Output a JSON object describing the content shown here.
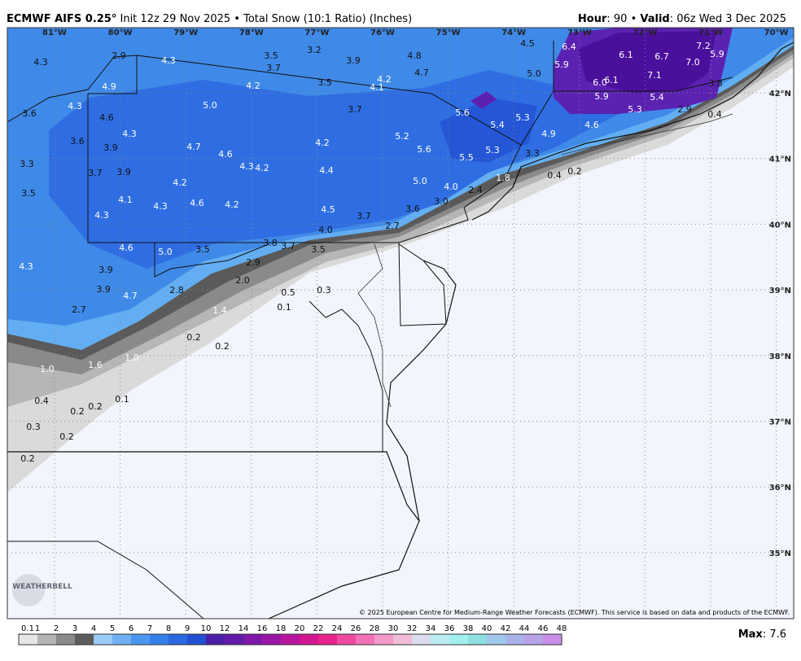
{
  "header": {
    "model": "ECMWF AIFS 0.25°",
    "init": " Init 12z 29 Nov 2025 • Total Snow (10:1 Ratio) (Inches)",
    "hour_label": "Hour",
    "hour": ": 90 • ",
    "valid_label": "Valid",
    "valid": ": 06z Wed 3 Dec 2025"
  },
  "map": {
    "lon_labels": [
      "81°W",
      "80°W",
      "79°W",
      "78°W",
      "77°W",
      "76°W",
      "75°W",
      "74°W",
      "73°W",
      "72°W",
      "71°W",
      "70°W"
    ],
    "lat_labels": [
      "42°N",
      "41°N",
      "40°N",
      "39°N",
      "38°N",
      "37°N",
      "36°N",
      "35°N"
    ],
    "values": [
      "4.3",
      "2.9",
      "4.3",
      "3.5",
      "3.2",
      "3.7",
      "3.9",
      "4.8",
      "4.7",
      "4.5",
      "6.4",
      "5.9",
      "6.1",
      "6.7",
      "7.2",
      "5.9",
      "7.0",
      "7.1",
      "3.8",
      "5.0",
      "4.2",
      "4.1",
      "3.5",
      "4.2",
      "4.9",
      "6.0",
      "6.1",
      "5.9",
      "5.3",
      "5.4",
      "2.9",
      "0.4",
      "4.3",
      "3.6",
      "4.6",
      "5.0",
      "3.7",
      "5.6",
      "5.4",
      "5.3",
      "4.6",
      "4.9",
      "4.3",
      "3.6",
      "3.9",
      "4.7",
      "4.6",
      "4.2",
      "5.2",
      "5.6",
      "5.5",
      "5.3",
      "3.3",
      "3.7",
      "3.9",
      "4.3",
      "4.2",
      "4.4",
      "4.2",
      "5.0",
      "4.0",
      "3.5",
      "4.1",
      "4.3",
      "4.6",
      "4.2",
      "3.0",
      "2.4",
      "4.5",
      "3.7",
      "3.6",
      "4.3",
      "2.7",
      "4.0",
      "4.6",
      "5.0",
      "3.5",
      "3.8",
      "3.7",
      "3.5",
      "2.9",
      "4.3",
      "3.9",
      "2.0",
      "3.9",
      "4.7",
      "2.8",
      "0.5",
      "0.3",
      "2.7",
      "1.4",
      "0.1",
      "0.2",
      "0.2",
      "1.0",
      "1.6",
      "1.0",
      "0.4",
      "0.2",
      "0.2",
      "0.1",
      "0.3",
      "0.2",
      "0.2",
      "1.8",
      "0.4",
      "0.2",
      "3.3"
    ]
  },
  "legend": {
    "labels": [
      "0.1",
      "1",
      "2",
      "3",
      "4",
      "5",
      "6",
      "7",
      "8",
      "9",
      "10",
      "12",
      "14",
      "16",
      "18",
      "20",
      "22",
      "24",
      "26",
      "28",
      "30",
      "32",
      "34",
      "36",
      "38",
      "40",
      "42",
      "44",
      "46",
      "48"
    ],
    "colors": [
      "#e6e6e6",
      "#b4b4b4",
      "#8a8a8a",
      "#5c5c5c",
      "#9ccaf8",
      "#70b0f4",
      "#4b96ee",
      "#3580e8",
      "#2a68de",
      "#2150d2",
      "#4b1fa8",
      "#621aa8",
      "#7e18a8",
      "#9a16a6",
      "#b8169e",
      "#d21890",
      "#e8228a",
      "#f04aa0",
      "#f272b8",
      "#f49ac8",
      "#f0bcd8",
      "#dcdcf0",
      "#bcecf2",
      "#a2f0ee",
      "#8ee0e0",
      "#a0c8ea",
      "#aab2ea",
      "#b8a2ea",
      "#c88ee8"
    ]
  },
  "max_label": "Max",
  "max": ": 7.6",
  "copyright": "© 2025 European Centre for Medium-Range Weather Forecasts (ECMWF). This service is based on data and products of the ECMWF.",
  "logo": "WEATHERBELL"
}
